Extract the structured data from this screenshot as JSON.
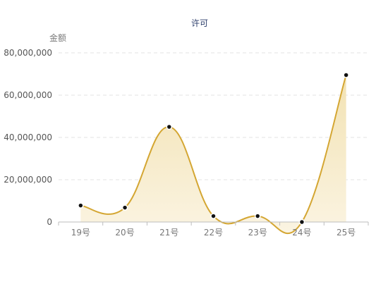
{
  "chart_data": {
    "type": "area",
    "title": "许可",
    "ylabel": "金额",
    "xlabel": "",
    "categories": [
      "19号",
      "20号",
      "21号",
      "22号",
      "23号",
      "24号",
      "25号"
    ],
    "series": [
      {
        "values": [
          7800000,
          6800000,
          45000000,
          2800000,
          2800000,
          0,
          69500000
        ]
      }
    ],
    "ylim": [
      0,
      80000000
    ],
    "yticks": [
      0,
      20000000,
      40000000,
      60000000,
      80000000
    ],
    "ytick_labels": [
      "0",
      "20,000,000",
      "40,000,000",
      "60,000,000",
      "80,000,000"
    ],
    "grid": true,
    "smooth": true,
    "colors": {
      "line": "#d4a632",
      "area_top": "#f2e2b3",
      "area_bottom": "#fbf4e2",
      "marker_fill": "#111111",
      "marker_stroke": "#ffffff",
      "grid": "#e3e3e3",
      "axis": "#bdbdbd",
      "title": "#2c3e6b"
    }
  }
}
